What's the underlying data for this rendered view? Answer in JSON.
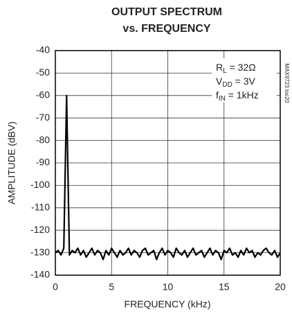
{
  "chart_data": {
    "type": "line",
    "title": "OUTPUT SPECTRUM",
    "subtitle": "vs. FREQUENCY",
    "x_label": "FREQUENCY (kHz)",
    "y_label": "AMPLITUDE (dBV)",
    "side_label": "MAX9723 toc20",
    "annotations": [
      {
        "main": "R",
        "sub": "L",
        "rest": " = 32Ω"
      },
      {
        "main": "V",
        "sub": "DD",
        "rest": " = 3V"
      },
      {
        "main": "f",
        "sub": "IN",
        "rest": " = 1kHz"
      }
    ],
    "xlim": [
      0,
      20
    ],
    "xticks": [
      0,
      5,
      10,
      15,
      20
    ],
    "ylim": [
      -140,
      -40
    ],
    "yticks": [
      -40,
      -50,
      -60,
      -70,
      -80,
      -90,
      -100,
      -110,
      -120,
      -130,
      -140
    ],
    "grid": true,
    "series": [
      {
        "color": "#000000",
        "x": [
          0,
          0.25,
          0.5,
          0.75,
          1,
          1.25,
          1.5,
          1.75,
          2,
          2.25,
          2.5,
          2.75,
          3,
          3.25,
          3.5,
          3.75,
          4,
          4.25,
          4.5,
          4.75,
          5,
          5.25,
          5.5,
          5.75,
          6,
          6.25,
          6.5,
          6.75,
          7,
          7.25,
          7.5,
          7.75,
          8,
          8.25,
          8.5,
          8.75,
          9,
          9.25,
          9.5,
          9.75,
          10,
          10.25,
          10.5,
          10.75,
          11,
          11.25,
          11.5,
          11.75,
          12,
          12.25,
          12.5,
          12.75,
          13,
          13.25,
          13.5,
          13.75,
          14,
          14.25,
          14.5,
          14.75,
          15,
          15.25,
          15.5,
          15.75,
          16,
          16.25,
          16.5,
          16.75,
          17,
          17.25,
          17.5,
          17.75,
          18,
          18.25,
          18.5,
          18.75,
          19,
          19.25,
          19.5,
          19.75,
          20
        ],
        "values": [
          -130,
          -129,
          -131,
          -128,
          -60,
          -131,
          -129,
          -130,
          -128,
          -131,
          -129,
          -132,
          -130,
          -128,
          -131,
          -129,
          -130,
          -133,
          -129,
          -131,
          -128,
          -130,
          -132,
          -129,
          -131,
          -130,
          -128,
          -131,
          -129,
          -130,
          -132,
          -129,
          -128,
          -131,
          -130,
          -129,
          -133,
          -130,
          -128,
          -131,
          -129,
          -130,
          -132,
          -128,
          -130,
          -131,
          -129,
          -132,
          -130,
          -128,
          -131,
          -130,
          -129,
          -132,
          -130,
          -128,
          -131,
          -129,
          -130,
          -133,
          -129,
          -130,
          -128,
          -131,
          -130,
          -132,
          -129,
          -131,
          -128,
          -130,
          -129,
          -132,
          -130,
          -131,
          -129,
          -128,
          -130,
          -131,
          -129,
          -132,
          -130
        ]
      }
    ]
  }
}
